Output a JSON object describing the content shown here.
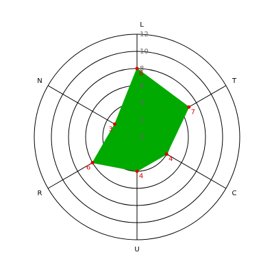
{
  "chart_data": {
    "type": "radar",
    "categories": [
      "L",
      "T",
      "C",
      "U",
      "R",
      "N"
    ],
    "values": [
      8,
      7,
      4,
      4,
      6,
      3
    ],
    "color": "#00aa00",
    "point_color": "#dd0000",
    "ylim": [
      0,
      12
    ],
    "yticks": [
      0,
      2,
      4,
      6,
      8,
      10,
      12
    ],
    "grid": true
  }
}
